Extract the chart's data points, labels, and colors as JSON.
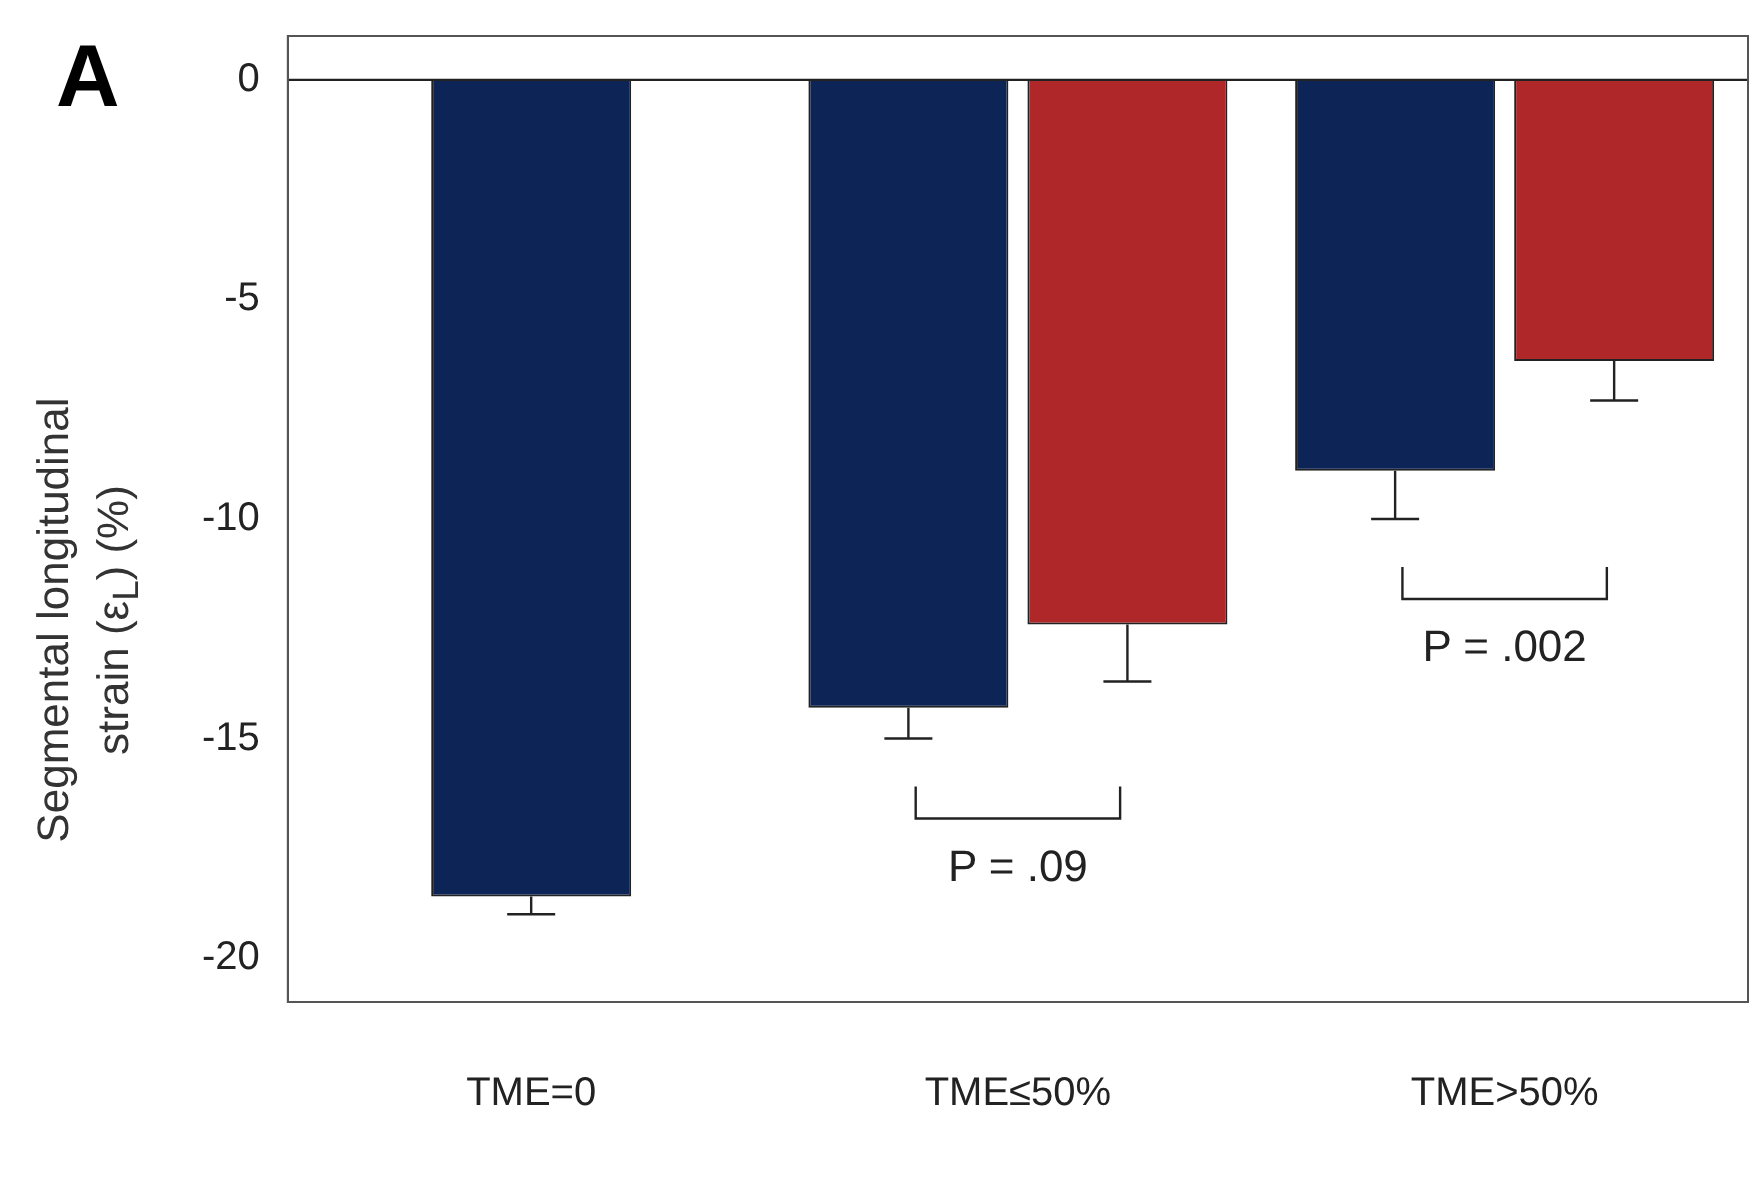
{
  "chart_data": {
    "type": "bar",
    "title": "A",
    "ylabel": "Segmental longitudinal strain (ε$_{L}$) (%)",
    "categories": [
      "TME=0",
      "TME≤50%",
      "TME>50%"
    ],
    "series": [
      {
        "color": "#0d2456",
        "values": [
          -18.6,
          -14.3,
          -8.9
        ],
        "errors": [
          [
            -19.0,
            -18.6
          ],
          [
            -15.0,
            -14.3
          ],
          [
            -10.0,
            -8.9
          ]
        ]
      },
      {
        "color": "#b0272a",
        "values": [
          null,
          -12.4,
          -6.4
        ],
        "errors": [
          null,
          [
            -13.7,
            -12.4
          ],
          [
            -7.3,
            -6.4
          ]
        ]
      }
    ],
    "ylim": [
      -21,
      1
    ],
    "yticks": [
      -20,
      -15,
      -10,
      -5,
      0
    ],
    "grid": false,
    "legend": false,
    "ref_lines": [
      {
        "axis": "y",
        "value": 0
      }
    ],
    "annotations": [
      "P = .09",
      "P = .002"
    ]
  }
}
